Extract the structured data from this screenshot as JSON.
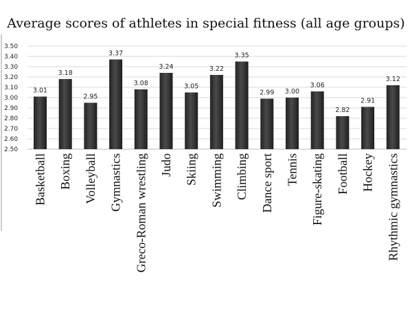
{
  "chart_data": {
    "type": "bar",
    "title": "Average scores of athletes in special fitness (all age groups)",
    "xlabel": "",
    "ylabel": "",
    "ylim": [
      2.5,
      3.5
    ],
    "ytick_step": 0.1,
    "yticks": [
      "2.50",
      "2.60",
      "2.70",
      "2.80",
      "2.90",
      "3.00",
      "3.10",
      "3.20",
      "3.30",
      "3.40",
      "3.50"
    ],
    "grid": true,
    "legend": "none",
    "categories": [
      "Basketball",
      "Boxing",
      "Volleyball",
      "Gymnastics",
      "Greco-Roman wrestling",
      "Judo",
      "Skiing",
      "Swimming",
      "Climbing",
      "Dance sport",
      "Tennis",
      "Figure-skating",
      "Football",
      "Hockey",
      "Rhythmic gymnastics"
    ],
    "values": [
      3.01,
      3.18,
      2.95,
      3.37,
      3.08,
      3.24,
      3.05,
      3.22,
      3.35,
      2.99,
      3.0,
      3.06,
      2.82,
      2.91,
      3.12
    ],
    "value_labels": [
      "3.01",
      "3.18",
      "2.95",
      "3.37",
      "3.08",
      "3.24",
      "3.05",
      "3.22",
      "3.35",
      "2.99",
      "3.00",
      "3.06",
      "2.82",
      "2.91",
      "3.12"
    ],
    "bar_color": "#3a3a3a",
    "grid_color": "#d9d9d9"
  }
}
